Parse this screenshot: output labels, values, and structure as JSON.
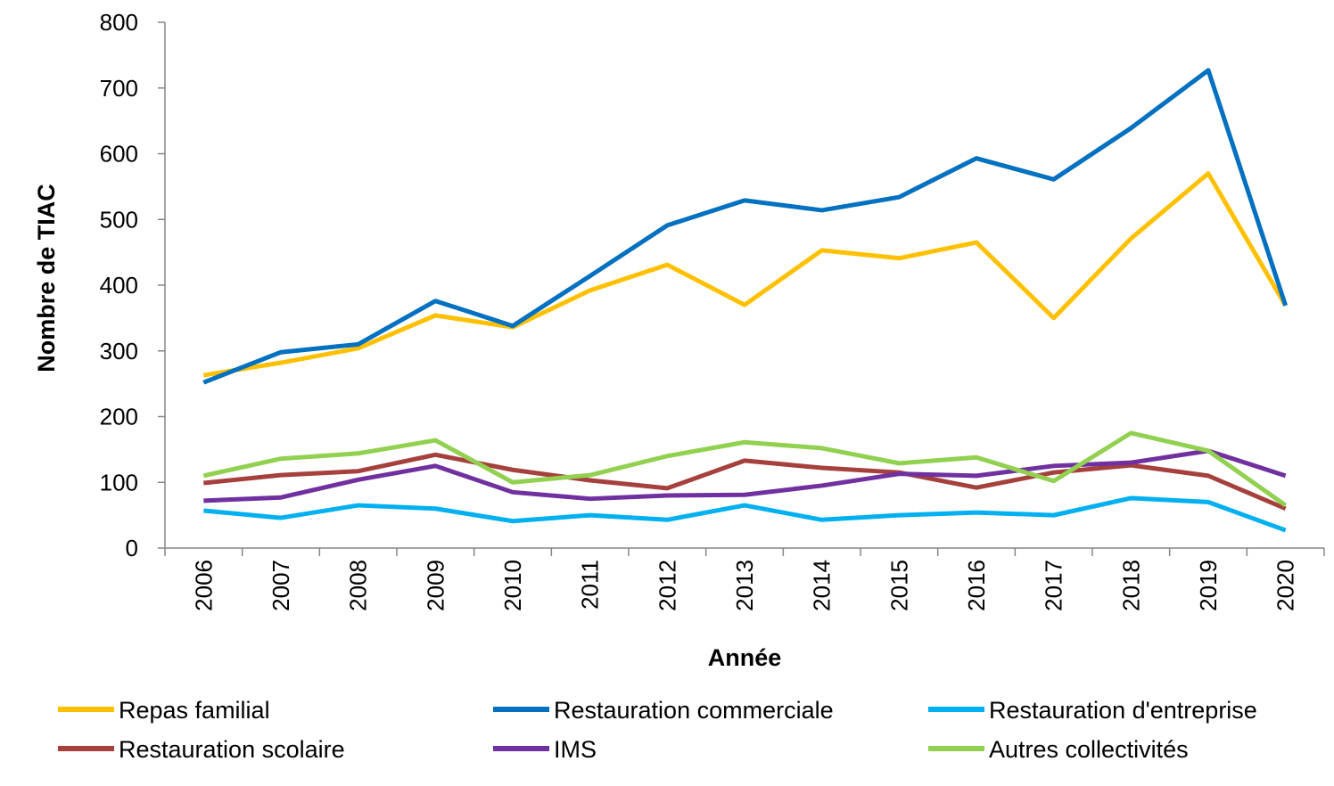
{
  "chart_data": {
    "type": "line",
    "xlabel": "Année",
    "ylabel": "Nombre de TIAC",
    "ylim": [
      0,
      800
    ],
    "yticks": [
      0,
      100,
      200,
      300,
      400,
      500,
      600,
      700,
      800
    ],
    "grid": false,
    "legend_position": "bottom",
    "categories": [
      "2006",
      "2007",
      "2008",
      "2009",
      "2010",
      "2011",
      "2012",
      "2013",
      "2014",
      "2015",
      "2016",
      "2017",
      "2018",
      "2019",
      "2020"
    ],
    "series": [
      {
        "name": "Repas familial",
        "color": "#FFC000",
        "values": [
          263,
          282,
          304,
          354,
          336,
          392,
          431,
          370,
          453,
          441,
          465,
          350,
          471,
          570,
          369
        ]
      },
      {
        "name": "Restauration commerciale",
        "color": "#0070C0",
        "values": [
          252,
          298,
          310,
          376,
          338,
          414,
          491,
          529,
          514,
          534,
          593,
          561,
          639,
          727,
          369
        ]
      },
      {
        "name": "Restauration d'entreprise",
        "color": "#00B0F0",
        "values": [
          57,
          46,
          65,
          60,
          41,
          50,
          43,
          65,
          43,
          50,
          54,
          50,
          76,
          70,
          27
        ]
      },
      {
        "name": "Restauration scolaire",
        "color": "#A5403D",
        "values": [
          99,
          111,
          117,
          142,
          119,
          103,
          91,
          133,
          122,
          115,
          92,
          115,
          126,
          110,
          60
        ]
      },
      {
        "name": "IMS",
        "color": "#7030A0",
        "values": [
          72,
          77,
          104,
          125,
          85,
          75,
          80,
          81,
          95,
          113,
          110,
          125,
          130,
          148,
          110
        ]
      },
      {
        "name": "Autres collectivités",
        "color": "#92D050",
        "values": [
          110,
          136,
          144,
          164,
          100,
          111,
          140,
          161,
          152,
          129,
          138,
          102,
          175,
          148,
          65
        ]
      }
    ]
  }
}
